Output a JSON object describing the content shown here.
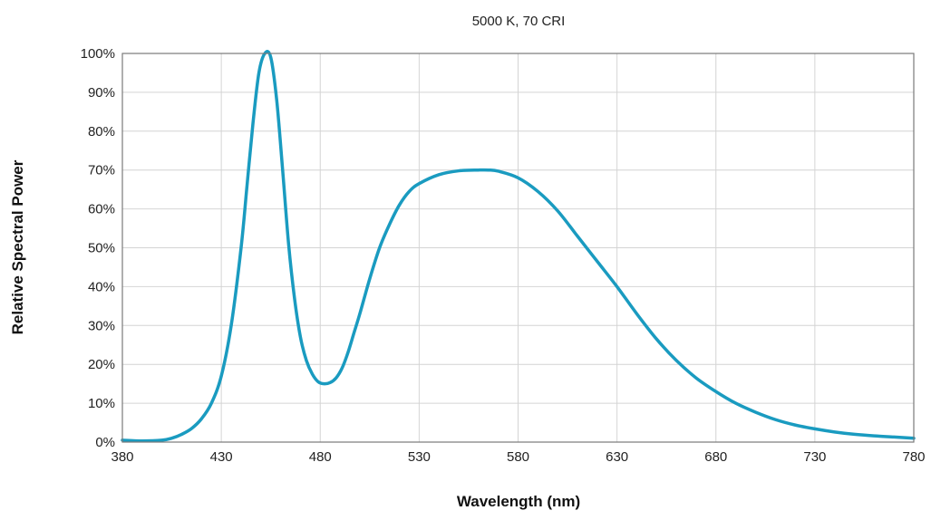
{
  "chart_data": {
    "type": "line",
    "title": "5000 K, 70 CRI",
    "xlabel": "Wavelength (nm)",
    "ylabel": "Relative Spectral Power",
    "xlim": [
      380,
      780
    ],
    "ylim": [
      0,
      100
    ],
    "grid": true,
    "x_ticks": [
      380,
      430,
      480,
      530,
      580,
      630,
      680,
      730,
      780
    ],
    "y_ticks": [
      0,
      10,
      20,
      30,
      40,
      50,
      60,
      70,
      80,
      90,
      100
    ],
    "x_tick_labels": [
      "380",
      "430",
      "480",
      "530",
      "580",
      "630",
      "680",
      "730",
      "780"
    ],
    "y_tick_labels": [
      "0%",
      "10%",
      "20%",
      "30%",
      "40%",
      "50%",
      "60%",
      "70%",
      "80%",
      "90%",
      "100%"
    ],
    "line_color": "#1a9bc0",
    "series": [
      {
        "x": [
          380,
          390,
          400,
          405,
          410,
          415,
          420,
          425,
          430,
          435,
          440,
          443,
          446,
          449,
          452,
          455,
          458,
          461,
          464,
          467,
          470,
          473,
          476,
          479,
          482,
          485,
          488,
          491,
          494,
          497,
          500,
          505,
          510,
          515,
          520,
          525,
          530,
          540,
          550,
          560,
          565,
          570,
          580,
          590,
          600,
          610,
          620,
          630,
          640,
          650,
          660,
          670,
          680,
          690,
          700,
          710,
          720,
          730,
          740,
          750,
          760,
          770,
          780
        ],
        "values": [
          0.5,
          0.3,
          0.5,
          1,
          2,
          3.5,
          6,
          10,
          17,
          30,
          50,
          66,
          82,
          95,
          100,
          99,
          88,
          70,
          51,
          37,
          27,
          21,
          17.5,
          15.5,
          15,
          15.3,
          16.5,
          19,
          23,
          28,
          33,
          42,
          50,
          56,
          61,
          64.5,
          66.5,
          68.8,
          69.8,
          70,
          70,
          69.7,
          68,
          64.5,
          59.5,
          53,
          46.5,
          40,
          33,
          26.5,
          21,
          16.5,
          13,
          10,
          7.7,
          5.8,
          4.4,
          3.4,
          2.6,
          2,
          1.6,
          1.3,
          1
        ]
      }
    ]
  }
}
